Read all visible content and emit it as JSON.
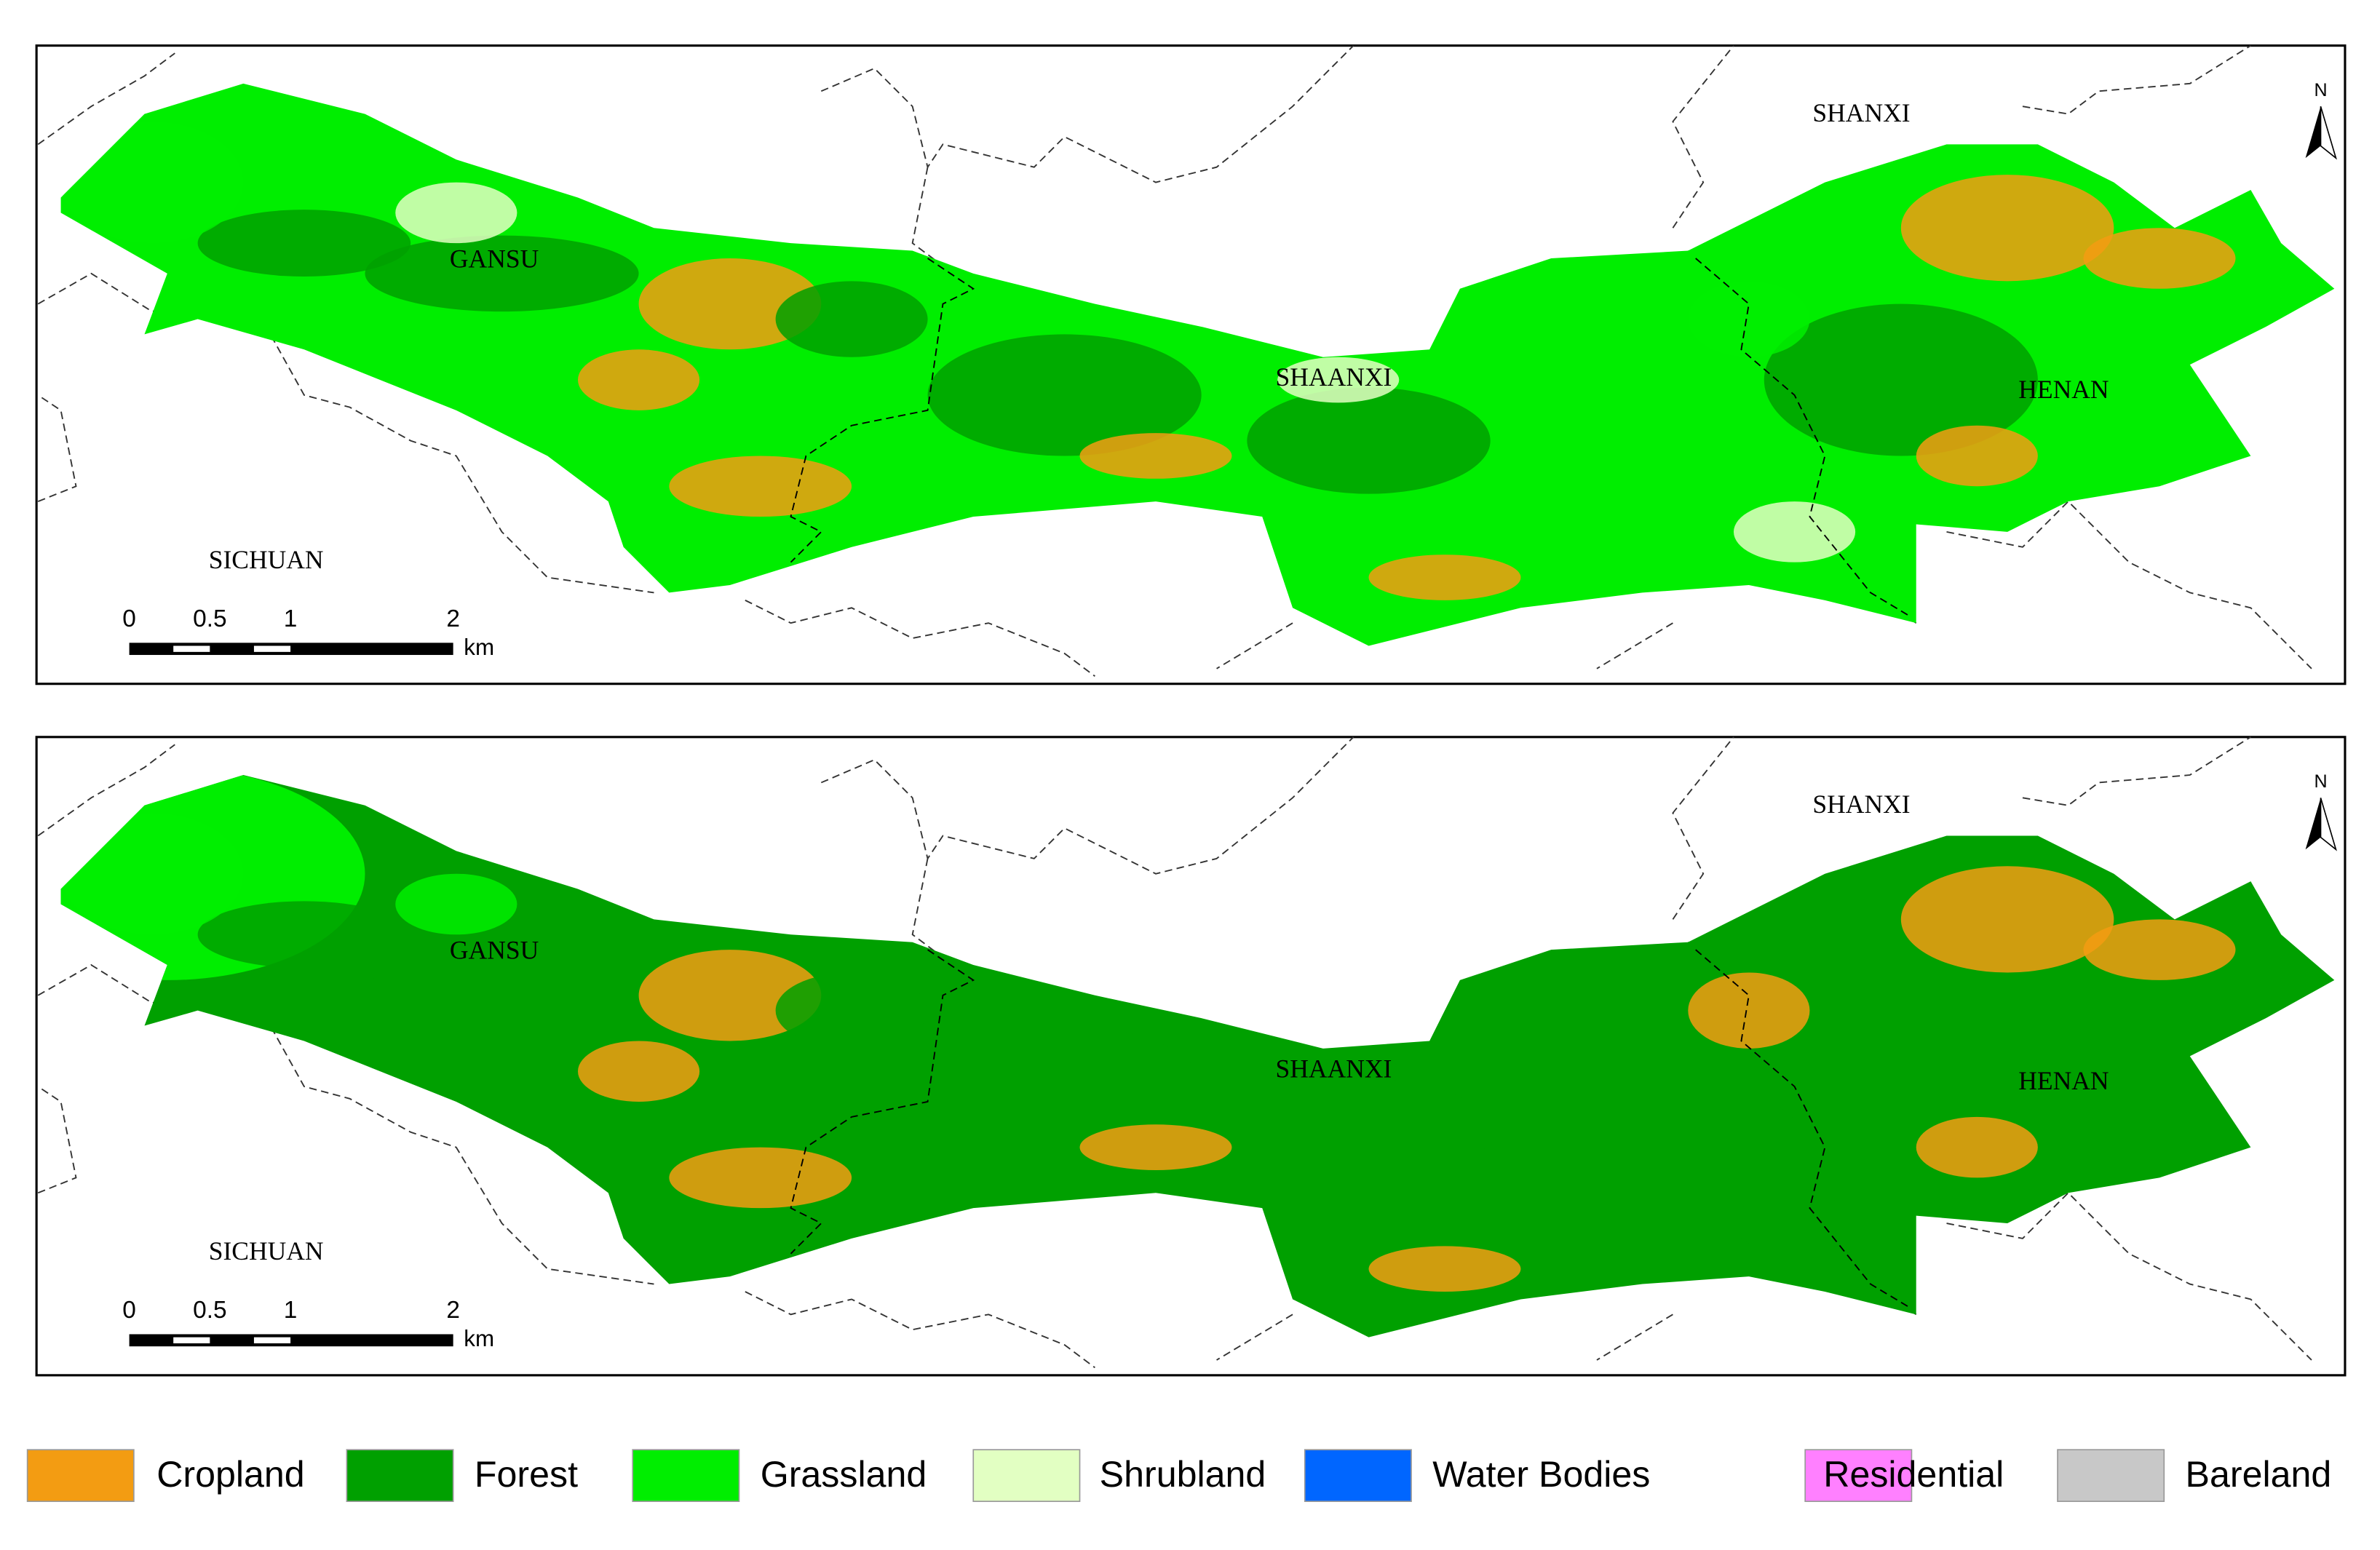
{
  "panels": [
    {
      "provinces": [
        "GANSU",
        "SHAANXI",
        "SHANXI",
        "HENAN",
        "SICHUAN"
      ],
      "scale_bar": {
        "ticks": [
          0,
          0.5,
          1,
          2
        ],
        "unit": "km"
      },
      "north": "N"
    },
    {
      "provinces": [
        "GANSU",
        "SHAANXI",
        "SHANXI",
        "HENAN",
        "SICHUAN"
      ],
      "scale_bar": {
        "ticks": [
          0,
          0.5,
          1,
          2
        ],
        "unit": "km"
      },
      "north": "N"
    }
  ],
  "legend": {
    "items": [
      {
        "name": "Cropland",
        "color": "#f39c12"
      },
      {
        "name": "Forest",
        "color": "#00a000"
      },
      {
        "name": "Grassland",
        "color": "#00ee00"
      },
      {
        "name": "Shrubland",
        "color": "#e2ffc2"
      },
      {
        "name": "Water Bodies",
        "color": "#0066ff"
      },
      {
        "name": "Residential",
        "color": "#ff80ff"
      },
      {
        "name": "Bareland",
        "color": "#c8c8c8"
      }
    ]
  }
}
